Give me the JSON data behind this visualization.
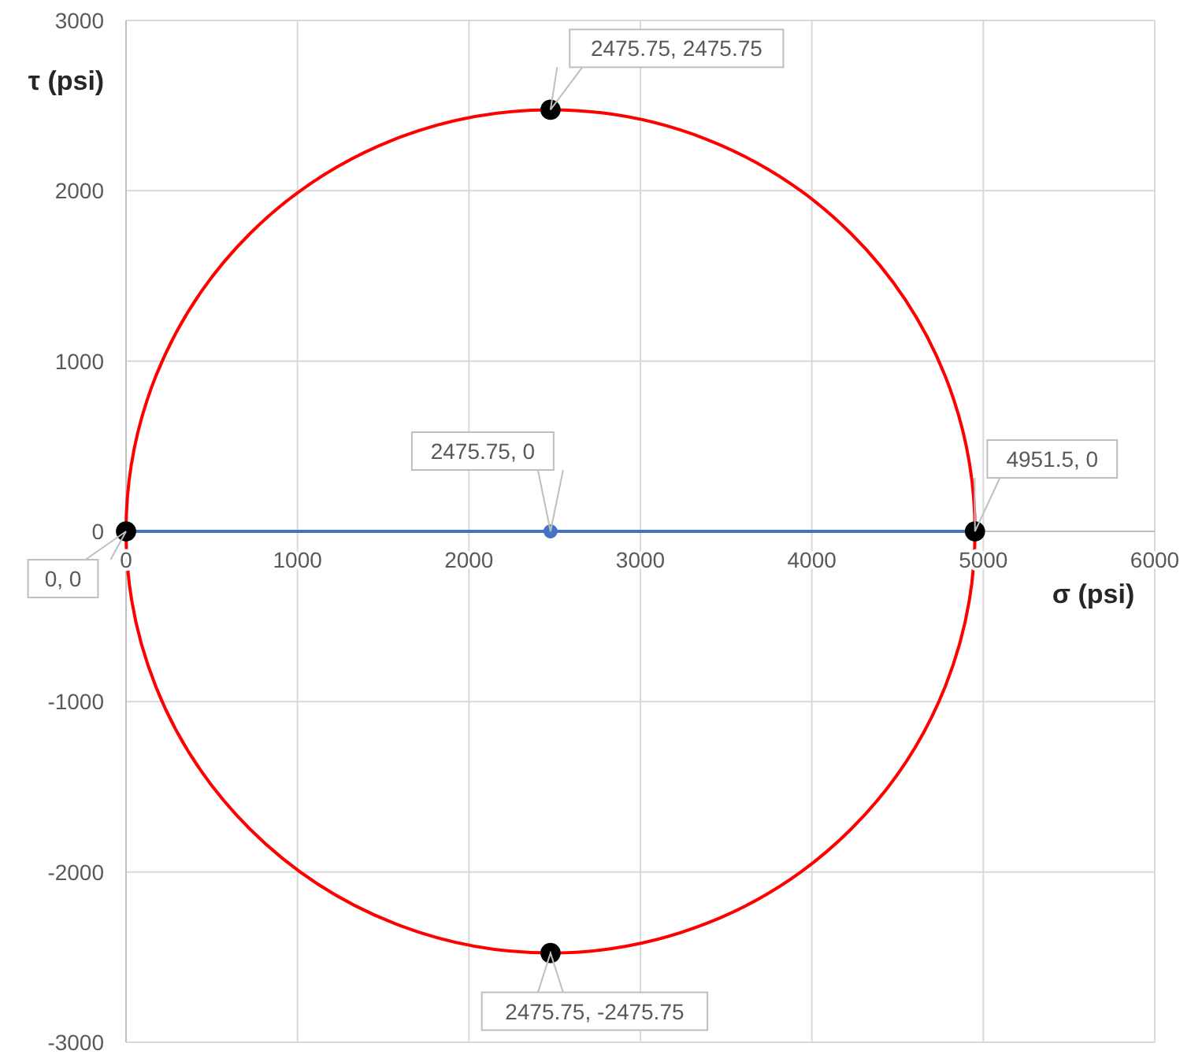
{
  "chart_data": {
    "type": "scatter",
    "xlabel": "σ (psi)",
    "ylabel": "τ (psi)",
    "xlim": [
      0,
      6000
    ],
    "xticks": [
      0,
      1000,
      2000,
      3000,
      4000,
      5000,
      6000
    ],
    "ylim": [
      -3000,
      3000
    ],
    "yticks": [
      -3000,
      -2000,
      -1000,
      0,
      1000,
      2000,
      3000
    ],
    "grid": true,
    "series": [
      {
        "type": "line",
        "color": "#4472c4",
        "marker": "none",
        "x": [
          0,
          4951.5
        ],
        "values": [
          0,
          0
        ]
      },
      {
        "color": "#4472c4",
        "marker": "circle",
        "x": [
          2475.75
        ],
        "values": [
          0
        ],
        "value_labels": [
          "2475.75, 0"
        ]
      },
      {
        "color": "#000000",
        "marker": "circle",
        "x": [
          0,
          2475.75,
          4951.5,
          2475.75
        ],
        "values": [
          0,
          2475.75,
          0,
          -2475.75
        ],
        "value_labels": [
          "0, 0",
          "2475.75, 2475.75",
          "4951.5, 0",
          "2475.75, -2475.75"
        ]
      }
    ]
  }
}
